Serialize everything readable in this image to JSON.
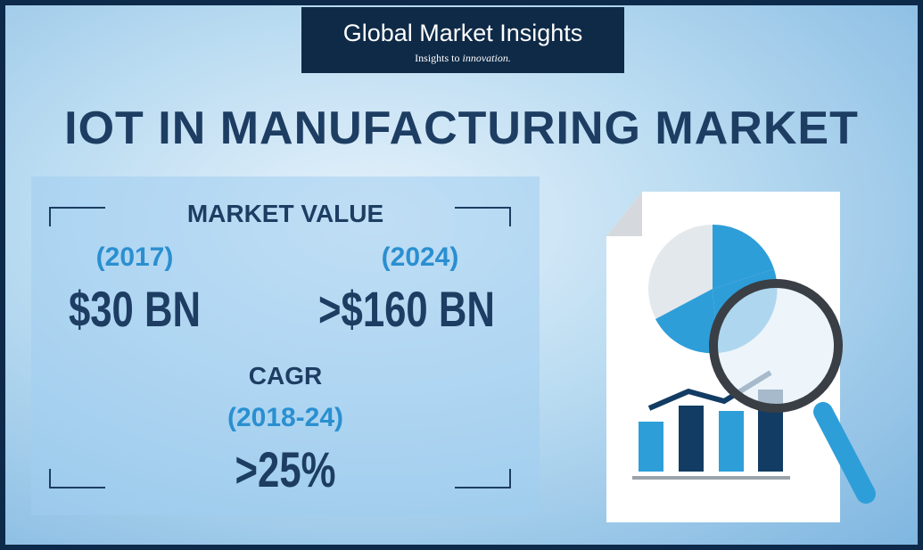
{
  "header": {
    "brand": "Global Market Insights",
    "tagline": "Insights to",
    "tagline_emphasis": "innovation."
  },
  "title": "IOT IN MANUFACTURING MARKET",
  "market_value": {
    "label": "MARKET VALUE",
    "start": {
      "year": "(2017)",
      "value": "$30 BN"
    },
    "end": {
      "year": "(2024)",
      "value": ">$160 BN"
    }
  },
  "cagr": {
    "label": "CAGR",
    "period": "(2018-24)",
    "value": ">25%"
  }
}
